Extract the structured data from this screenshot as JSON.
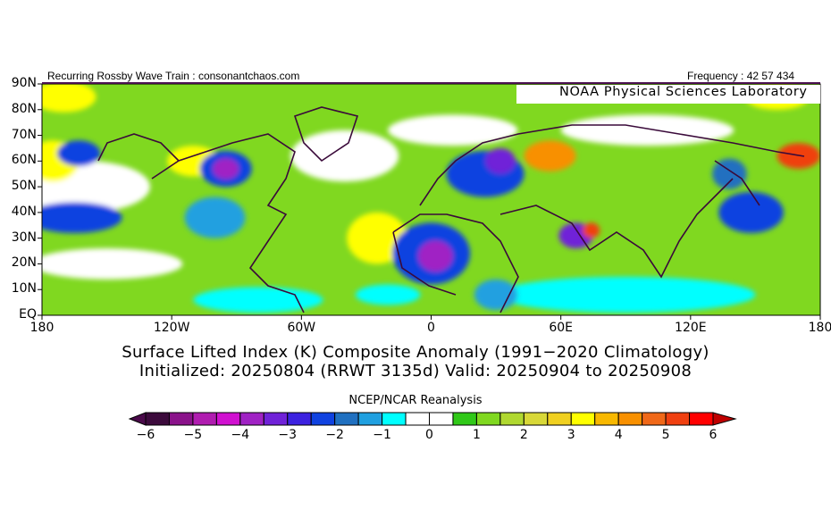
{
  "header": {
    "left_label": "Recurring Rossby Wave Train : consonantchaos.com",
    "right_label": "Frequency : 42 57 434",
    "lab_label": "NOAA Physical Sciences Laboratory"
  },
  "titles": {
    "line1": "Surface Lifted Index (K) Composite Anomaly (1991−2020 Climatology)",
    "line2": "Initialized: 20250804 (RRWT 3135d) Valid: 20250904 to 20250908"
  },
  "colorbar": {
    "title": "NCEP/NCAR Reanalysis",
    "min": -6,
    "max": 6,
    "step": 0.5,
    "labels": [
      "-6",
      "-5",
      "-4",
      "-3",
      "-2",
      "-1",
      "0",
      "1",
      "2",
      "3",
      "4",
      "5",
      "6"
    ],
    "colors": [
      "#3c0a3c",
      "#8a128a",
      "#b01cb0",
      "#d010d0",
      "#a022c4",
      "#7022d8",
      "#3c22e0",
      "#1042e0",
      "#2070c0",
      "#20a0e0",
      "#00ffff",
      "#ffffff",
      "#ffffff",
      "#30c818",
      "#80d820",
      "#b0d830",
      "#d8d838",
      "#f0d020",
      "#ffff00",
      "#f8b800",
      "#f89000",
      "#f06818",
      "#f04010",
      "#ff0000"
    ],
    "under_color": "#4a0a4a",
    "over_color": "#c00000"
  },
  "chart_data": {
    "type": "heatmap",
    "variable": "Surface Lifted Index (K) Composite Anomaly",
    "units": "K",
    "lon_range": [
      -180,
      180
    ],
    "lat_range": [
      0,
      90
    ],
    "y_ticks": [
      "90N",
      "80N",
      "70N",
      "60N",
      "50N",
      "40N",
      "30N",
      "20N",
      "10N",
      "EQ"
    ],
    "x_ticks": [
      "180",
      "120W",
      "60W",
      "0",
      "60E",
      "120E",
      "180"
    ],
    "background_value": 1.2,
    "anomaly_features": [
      {
        "lon": -160,
        "lat": 50,
        "rlon": 30,
        "rlat": 10,
        "value": 0
      },
      {
        "lon": -40,
        "lat": 62,
        "rlon": 25,
        "rlat": 10,
        "value": 0
      },
      {
        "lon": 100,
        "lat": 72,
        "rlon": 40,
        "rlat": 6,
        "value": 0
      },
      {
        "lon": 10,
        "lat": 72,
        "rlon": 30,
        "rlat": 6,
        "value": 0
      },
      {
        "lon": -150,
        "lat": 20,
        "rlon": 35,
        "rlat": 6,
        "value": 0
      },
      {
        "lon": 90,
        "lat": 8,
        "rlon": 60,
        "rlat": 7,
        "value": -0.8
      },
      {
        "lon": -80,
        "lat": 6,
        "rlon": 30,
        "rlat": 5,
        "value": -0.8
      },
      {
        "lon": -170,
        "lat": 85,
        "rlon": 15,
        "rlat": 6,
        "value": 3
      },
      {
        "lon": 160,
        "lat": 85,
        "rlon": 15,
        "rlat": 5,
        "value": 3
      },
      {
        "lon": -25,
        "lat": 30,
        "rlon": 14,
        "rlat": 10,
        "value": 3
      },
      {
        "lon": -110,
        "lat": 60,
        "rlon": 12,
        "rlat": 6,
        "value": 3
      },
      {
        "lon": -175,
        "lat": 60,
        "rlon": 12,
        "rlat": 8,
        "value": 3
      },
      {
        "lon": 55,
        "lat": 62,
        "rlon": 12,
        "rlat": 6,
        "value": 4
      },
      {
        "lon": 170,
        "lat": 62,
        "rlon": 10,
        "rlat": 5,
        "value": 5
      },
      {
        "lon": -165,
        "lat": 38,
        "rlon": 22,
        "rlat": 6,
        "value": -2.5
      },
      {
        "lon": -163,
        "lat": 63,
        "rlon": 10,
        "rlat": 5,
        "value": -2.5
      },
      {
        "lon": -95,
        "lat": 57,
        "rlon": 12,
        "rlat": 7,
        "value": -2.5
      },
      {
        "lon": -95,
        "lat": 57,
        "rlon": 6,
        "rlat": 4,
        "value": -4
      },
      {
        "lon": -100,
        "lat": 38,
        "rlon": 14,
        "rlat": 8,
        "value": -1.5
      },
      {
        "lon": 0,
        "lat": 24,
        "rlon": 18,
        "rlat": 12,
        "value": -2.5
      },
      {
        "lon": 2,
        "lat": 23,
        "rlon": 8,
        "rlat": 6,
        "value": -4
      },
      {
        "lon": 25,
        "lat": 55,
        "rlon": 18,
        "rlat": 9,
        "value": -2.5
      },
      {
        "lon": 32,
        "lat": 60,
        "rlon": 7,
        "rlat": 5,
        "value": -3.5
      },
      {
        "lon": 67,
        "lat": 31,
        "rlon": 8,
        "rlat": 5,
        "value": -3.5
      },
      {
        "lon": 74,
        "lat": 33,
        "rlon": 4,
        "rlat": 3,
        "value": 5
      },
      {
        "lon": 148,
        "lat": 40,
        "rlon": 15,
        "rlat": 8,
        "value": -2.5
      },
      {
        "lon": 138,
        "lat": 55,
        "rlon": 8,
        "rlat": 6,
        "value": -2
      },
      {
        "lon": 30,
        "lat": 8,
        "rlon": 10,
        "rlat": 6,
        "value": -1.5
      },
      {
        "lon": -20,
        "lat": 8,
        "rlon": 15,
        "rlat": 4,
        "value": -0.8
      }
    ]
  }
}
